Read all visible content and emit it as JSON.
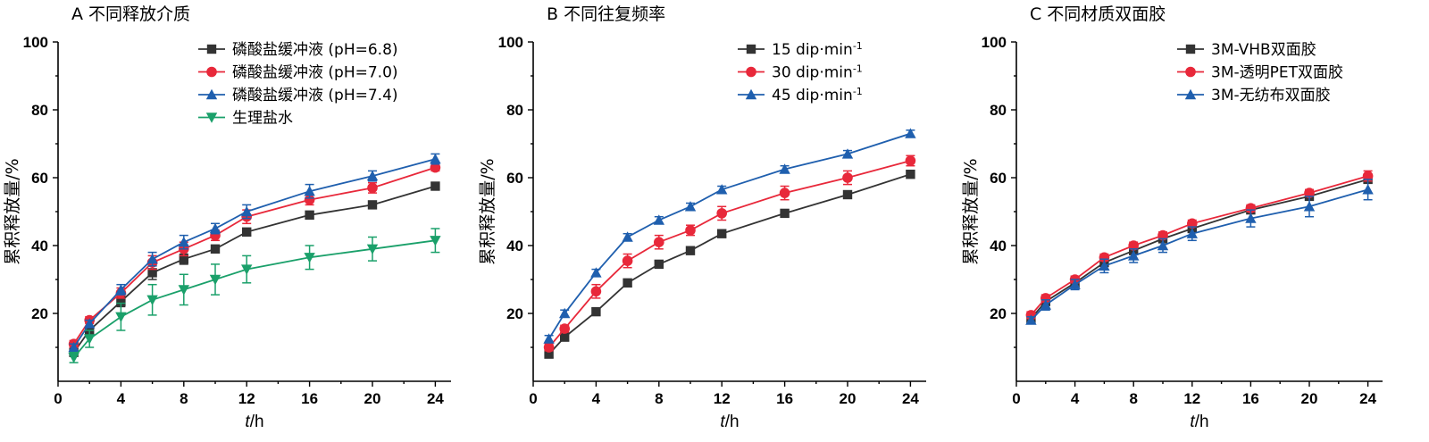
{
  "chart_data": [
    {
      "type": "line",
      "panel_label": "A",
      "title": "不同释放介质",
      "xlabel_var": "t",
      "xlabel_unit": "/h",
      "ylabel": "累积释放量/%",
      "xlim": [
        0,
        25
      ],
      "ylim": [
        0,
        100
      ],
      "xticks": [
        0,
        4,
        8,
        12,
        16,
        20,
        24
      ],
      "yticks": [
        20,
        40,
        60,
        80,
        100
      ],
      "legend_position": "top-right",
      "x": [
        1,
        2,
        4,
        6,
        8,
        10,
        12,
        16,
        20,
        24
      ],
      "series": [
        {
          "name": "磷酸盐缓冲液 (pH=6.8)",
          "color": "#333333",
          "marker": "square",
          "values": [
            8.5,
            15,
            23.5,
            32,
            36,
            39,
            44,
            49,
            52,
            57.5
          ],
          "errors": [
            1,
            1,
            1.5,
            2,
            1.5,
            1,
            1,
            1,
            1,
            1
          ]
        },
        {
          "name": "磷酸盐缓冲液 (pH=7.0)",
          "color": "#e8283a",
          "marker": "circle",
          "values": [
            11,
            18,
            26,
            35,
            39,
            43,
            48.5,
            53.5,
            57,
            63
          ],
          "errors": [
            1,
            1,
            1.5,
            2,
            2,
            1.5,
            2,
            1.5,
            1.5,
            1
          ]
        },
        {
          "name": "磷酸盐缓冲液 (pH=7.4)",
          "color": "#1f5fae",
          "marker": "triangle-up",
          "values": [
            10,
            17,
            27,
            36,
            41,
            45,
            50,
            56,
            60.5,
            65.5
          ],
          "errors": [
            1,
            1,
            1.5,
            2,
            2,
            1.5,
            2,
            2,
            1.5,
            1.5
          ]
        },
        {
          "name": "生理盐水",
          "color": "#1aa06a",
          "marker": "triangle-down",
          "values": [
            7,
            12.5,
            19,
            24,
            27,
            30,
            33,
            36.5,
            39,
            41.5
          ],
          "errors": [
            1.5,
            2.5,
            4,
            4.5,
            4.5,
            4.5,
            4,
            3.5,
            3.5,
            3.5
          ]
        }
      ]
    },
    {
      "type": "line",
      "panel_label": "B",
      "title": "不同往复频率",
      "xlabel_var": "t",
      "xlabel_unit": "/h",
      "ylabel": "累积释放量/%",
      "xlim": [
        0,
        25
      ],
      "ylim": [
        0,
        100
      ],
      "xticks": [
        0,
        4,
        8,
        12,
        16,
        20,
        24
      ],
      "yticks": [
        20,
        40,
        60,
        80,
        100
      ],
      "legend_position": "top-right",
      "x": [
        1,
        2,
        4,
        6,
        8,
        10,
        12,
        16,
        20,
        24
      ],
      "series": [
        {
          "name": "15 dip·min",
          "name_sup": "-1",
          "color": "#333333",
          "marker": "square",
          "values": [
            8,
            13,
            20.5,
            29,
            34.5,
            38.5,
            43.5,
            49.5,
            55,
            61
          ],
          "errors": [
            1,
            1,
            1,
            1,
            1,
            1,
            1,
            1,
            1,
            1
          ]
        },
        {
          "name": "30 dip·min",
          "name_sup": "-1",
          "color": "#e8283a",
          "marker": "circle",
          "values": [
            10,
            15.5,
            26.5,
            35.5,
            41,
            44.5,
            49.5,
            55.5,
            60,
            65
          ],
          "errors": [
            1,
            1,
            2,
            2,
            2,
            1.5,
            2,
            2,
            2,
            1.5
          ]
        },
        {
          "name": "45 dip·min",
          "name_sup": "-1",
          "color": "#1f5fae",
          "marker": "triangle-up",
          "values": [
            12.5,
            20,
            32,
            42.5,
            47.5,
            51.5,
            56.5,
            62.5,
            67,
            73
          ],
          "errors": [
            1,
            1,
            1,
            1,
            1,
            1,
            1,
            1,
            1,
            1
          ]
        }
      ]
    },
    {
      "type": "line",
      "panel_label": "C",
      "title": "不同材质双面胶",
      "xlabel_var": "t",
      "xlabel_unit": "/h",
      "ylabel": "累积释放量/%",
      "xlim": [
        0,
        25
      ],
      "ylim": [
        0,
        100
      ],
      "xticks": [
        0,
        4,
        8,
        12,
        16,
        20,
        24
      ],
      "yticks": [
        20,
        40,
        60,
        80,
        100
      ],
      "legend_position": "top-right",
      "x": [
        1,
        2,
        4,
        6,
        8,
        10,
        12,
        16,
        20,
        24
      ],
      "series": [
        {
          "name": "3M-VHB双面胶",
          "color": "#333333",
          "marker": "square",
          "values": [
            18.5,
            23.5,
            29,
            35,
            38.5,
            42,
            45,
            50.5,
            54.5,
            59.5
          ],
          "errors": [
            1,
            1,
            1,
            1,
            1,
            1,
            1,
            1,
            1,
            1
          ]
        },
        {
          "name": "3M-透明PET双面胶",
          "color": "#e8283a",
          "marker": "circle",
          "values": [
            19.5,
            24.5,
            30,
            36.5,
            40,
            43,
            46.5,
            51,
            55.5,
            60.5
          ],
          "errors": [
            1,
            1,
            1,
            1,
            1,
            1,
            1,
            1,
            1,
            1.5
          ]
        },
        {
          "name": "3M-无纺布双面胶",
          "color": "#1f5fae",
          "marker": "triangle-up",
          "values": [
            18,
            22.5,
            28.5,
            34,
            37,
            40,
            43.5,
            48,
            51.5,
            56.5
          ],
          "errors": [
            1,
            1.5,
            1.5,
            2,
            2,
            2,
            2,
            2.5,
            3,
            3
          ]
        }
      ]
    }
  ]
}
